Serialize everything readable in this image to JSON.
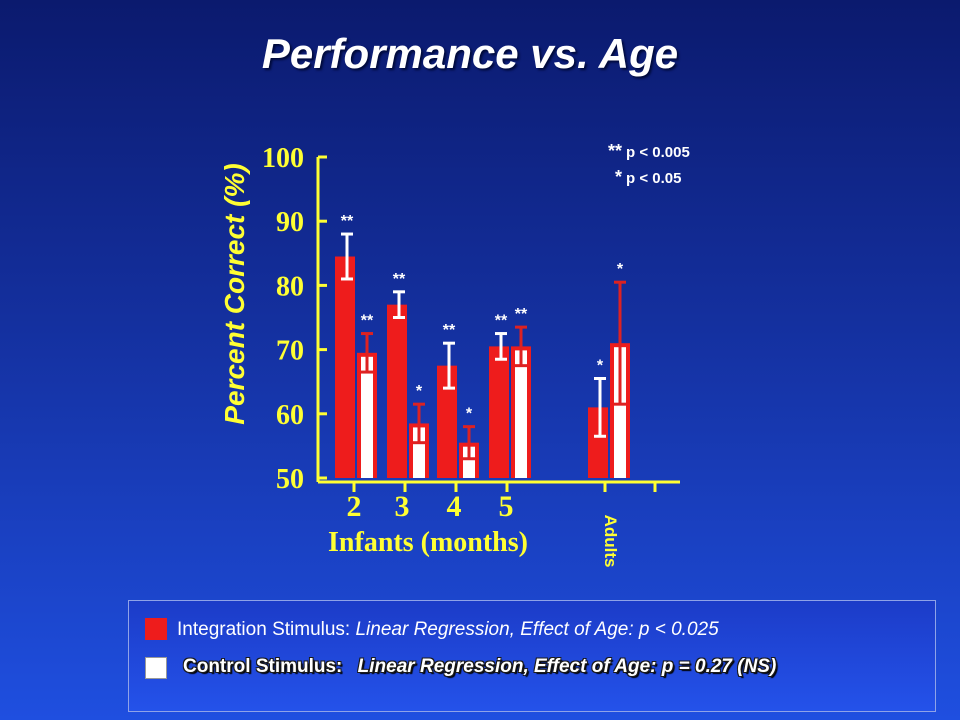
{
  "slide": {
    "title": "Performance vs. Age"
  },
  "colors": {
    "integration": "#ee1c1c",
    "control": "#ffffff",
    "axis": "#ffff33",
    "whisker_red": "#ffffff",
    "whisker_white": "#dd2222",
    "background_top": "#0b1a6e",
    "background_bottom": "#1f4fe0"
  },
  "chart_data": {
    "type": "bar",
    "ylabel": "Percent Correct (%)",
    "xlabel": "Infants (months)",
    "ylim": [
      50,
      100
    ],
    "yticks": [
      "50",
      "60",
      "70",
      "80",
      "90",
      "100"
    ],
    "groups": [
      {
        "label": "2",
        "integration": {
          "value": 84.5,
          "err": 3.5,
          "sig": "**"
        },
        "control": {
          "value": 69.5,
          "err": 3,
          "sig": "**"
        }
      },
      {
        "label": "3",
        "integration": {
          "value": 77,
          "err": 2,
          "sig": "**"
        },
        "control": {
          "value": 58.5,
          "err": 3,
          "sig": "*"
        }
      },
      {
        "label": "4",
        "integration": {
          "value": 67.5,
          "err": 3.5,
          "sig": "**"
        },
        "control": {
          "value": 55.5,
          "err": 2.5,
          "sig": "*"
        }
      },
      {
        "label": "5",
        "integration": {
          "value": 70.5,
          "err": 2,
          "sig": "**"
        },
        "control": {
          "value": 70.5,
          "err": 3,
          "sig": "**"
        }
      },
      {
        "label": "Adults",
        "integration": {
          "value": 61,
          "err": 4.5,
          "sig": "*"
        },
        "control": {
          "value": 71,
          "err": 9.5,
          "sig": "*"
        }
      }
    ],
    "series": [
      {
        "name": "Integration Stimulus",
        "values": [
          84.5,
          77,
          67.5,
          70.5,
          61
        ]
      },
      {
        "name": "Control Stimulus",
        "values": [
          69.5,
          58.5,
          55.5,
          70.5,
          71
        ]
      }
    ],
    "significance_key": [
      {
        "mark": "**",
        "text": "p < 0.005"
      },
      {
        "mark": "*",
        "text": "p < 0.05"
      }
    ]
  },
  "legend": {
    "integration": {
      "label": "Integration Stimulus:",
      "stat": "Linear Regression, Effect of Age: p < 0.025"
    },
    "control": {
      "label": "Control Stimulus:",
      "stat": "Linear Regression, Effect of Age: p = 0.27 (NS)"
    }
  }
}
